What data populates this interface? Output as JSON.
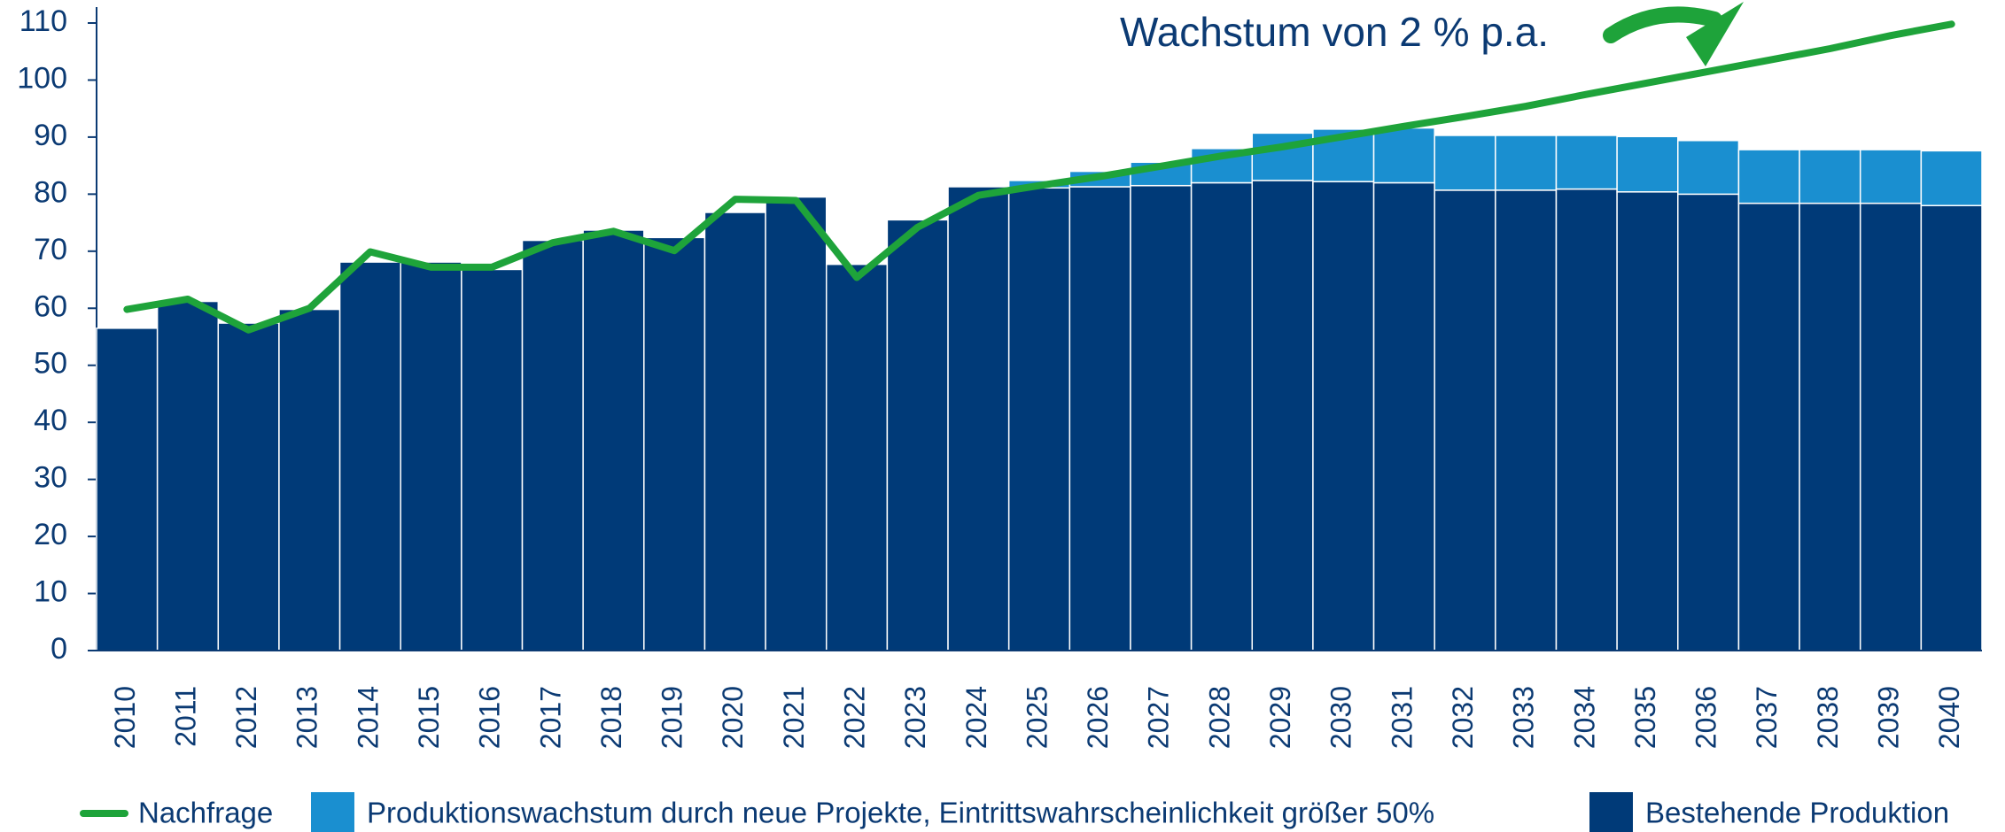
{
  "chart_data": {
    "type": "bar",
    "stacked": true,
    "annotation": "Wachstum von 2 % p.a.",
    "categories": [
      "2010",
      "2011",
      "2012",
      "2013",
      "2014",
      "2015",
      "2016",
      "2017",
      "2018",
      "2019",
      "2020",
      "2021",
      "2022",
      "2023",
      "2024",
      "2025",
      "2026",
      "2027",
      "2028",
      "2029",
      "2030",
      "2031",
      "2032",
      "2033",
      "2034",
      "2035",
      "2036",
      "2037",
      "2038",
      "2039",
      "2040"
    ],
    "series": [
      {
        "name": "Nachfrage",
        "type": "line",
        "color": "#1ea33a",
        "values": [
          59.8,
          61.6,
          56.2,
          60.0,
          69.9,
          67.2,
          67.2,
          71.5,
          73.5,
          70.1,
          79.1,
          78.9,
          65.4,
          74.2,
          79.8,
          81.5,
          83.1,
          84.9,
          86.7,
          88.3,
          90.1,
          91.9,
          93.6,
          95.4,
          97.5,
          99.5,
          101.5,
          103.5,
          105.5,
          107.8,
          109.8
        ]
      },
      {
        "name": "Produktionswachstum durch neue Projekte, Eintrittswahrscheinlichkeit größer 50%",
        "type": "bar",
        "color": "#1a8fd0",
        "values": [
          0,
          0,
          0,
          0,
          0,
          0,
          0,
          0,
          0,
          0,
          0,
          0,
          0,
          0,
          0,
          1.3,
          2.7,
          4.1,
          6.0,
          8.3,
          9.2,
          9.6,
          9.6,
          9.6,
          9.4,
          9.7,
          9.4,
          9.4,
          9.4,
          9.4,
          9.6
        ]
      },
      {
        "name": "Bestehende Produktion",
        "type": "bar",
        "color": "#003a78",
        "values": [
          56.5,
          61.2,
          57.4,
          59.8,
          68.1,
          68.1,
          66.8,
          71.9,
          73.7,
          72.4,
          76.8,
          79.5,
          67.7,
          75.5,
          81.3,
          81.1,
          81.3,
          81.5,
          82.0,
          82.4,
          82.2,
          82.0,
          80.7,
          80.7,
          80.9,
          80.4,
          80.0,
          78.4,
          78.4,
          78.4,
          78.0
        ]
      }
    ],
    "ylim": [
      0,
      110
    ],
    "yticks": [
      0,
      10,
      20,
      30,
      40,
      50,
      60,
      70,
      80,
      90,
      100,
      110
    ],
    "legend": "bottom"
  }
}
